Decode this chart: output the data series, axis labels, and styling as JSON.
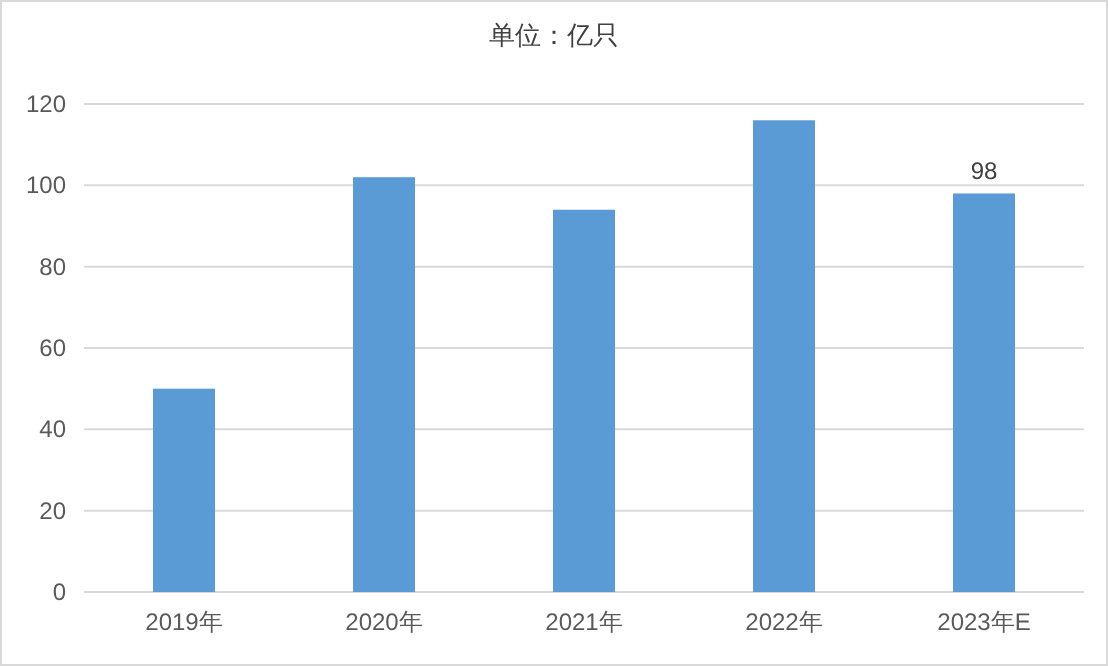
{
  "chart_data": {
    "type": "bar",
    "title": "单位：亿只",
    "categories": [
      "2019年",
      "2020年",
      "2021年",
      "2022年",
      "2023年E"
    ],
    "values": [
      50,
      102,
      94,
      116,
      98
    ],
    "value_labels": [
      null,
      null,
      null,
      null,
      "98"
    ],
    "color": "#5b9bd5",
    "ylim": [
      0,
      120
    ],
    "yticks": [
      0,
      20,
      40,
      60,
      80,
      100,
      120
    ],
    "grid": "y"
  }
}
